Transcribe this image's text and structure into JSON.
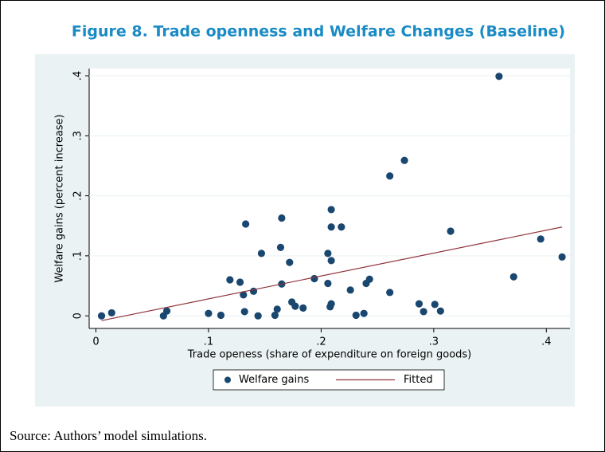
{
  "chart_data": {
    "type": "scatter",
    "title": "Figure 8. Trade openness and Welfare Changes (Baseline)",
    "x_label": "Trade openess (share of expenditure on foreign goods)",
    "y_label": "Welfare gains (percent increase)",
    "xlim": [
      -0.006,
      0.421
    ],
    "ylim": [
      -0.021,
      0.412
    ],
    "xticks": [
      0,
      {
        "value": 0.1,
        "label": ".1"
      },
      {
        "value": 0.2,
        "label": ".2"
      },
      {
        "value": 0.3,
        "label": ".3"
      },
      {
        "value": 0.4,
        "label": ".4"
      }
    ],
    "yticks": [
      0,
      {
        "value": 0.1,
        "label": ".1"
      },
      {
        "value": 0.2,
        "label": ".2"
      },
      {
        "value": 0.3,
        "label": ".3"
      },
      {
        "value": 0.4,
        "label": ".4"
      }
    ],
    "grid": true,
    "series": [
      {
        "name": "Welfare gains",
        "type": "scatter",
        "color": "#1a476f",
        "x": [
          0.005,
          0.014,
          0.06,
          0.063,
          0.1,
          0.111,
          0.119,
          0.128,
          0.131,
          0.132,
          0.133,
          0.14,
          0.144,
          0.147,
          0.159,
          0.161,
          0.164,
          0.165,
          0.165,
          0.172,
          0.174,
          0.177,
          0.184,
          0.194,
          0.206,
          0.206,
          0.208,
          0.209,
          0.209,
          0.209,
          0.209,
          0.218,
          0.226,
          0.231,
          0.238,
          0.24,
          0.243,
          0.261,
          0.261,
          0.274,
          0.287,
          0.291,
          0.301,
          0.306,
          0.315,
          0.358,
          0.371,
          0.395,
          0.414
        ],
        "values": [
          0,
          0.005,
          0,
          0.008,
          0.004,
          0.001,
          0.06,
          0.056,
          0.035,
          0.007,
          0.153,
          0.041,
          0,
          0.104,
          0.001,
          0.011,
          0.114,
          0.053,
          0.163,
          0.089,
          0.023,
          0.016,
          0.013,
          0.062,
          0.104,
          0.054,
          0.015,
          0.02,
          0.177,
          0.148,
          0.092,
          0.148,
          0.043,
          0.001,
          0.004,
          0.054,
          0.061,
          0.233,
          0.039,
          0.259,
          0.02,
          0.007,
          0.019,
          0.008,
          0.141,
          0.399,
          0.065,
          0.128,
          0.098
        ]
      },
      {
        "name": "Fitted",
        "type": "line",
        "color": "#90353b",
        "x": [
          0.005,
          0.414
        ],
        "values": [
          -0.008,
          0.148
        ]
      }
    ]
  },
  "source": "Source: Authors’ model simulations."
}
